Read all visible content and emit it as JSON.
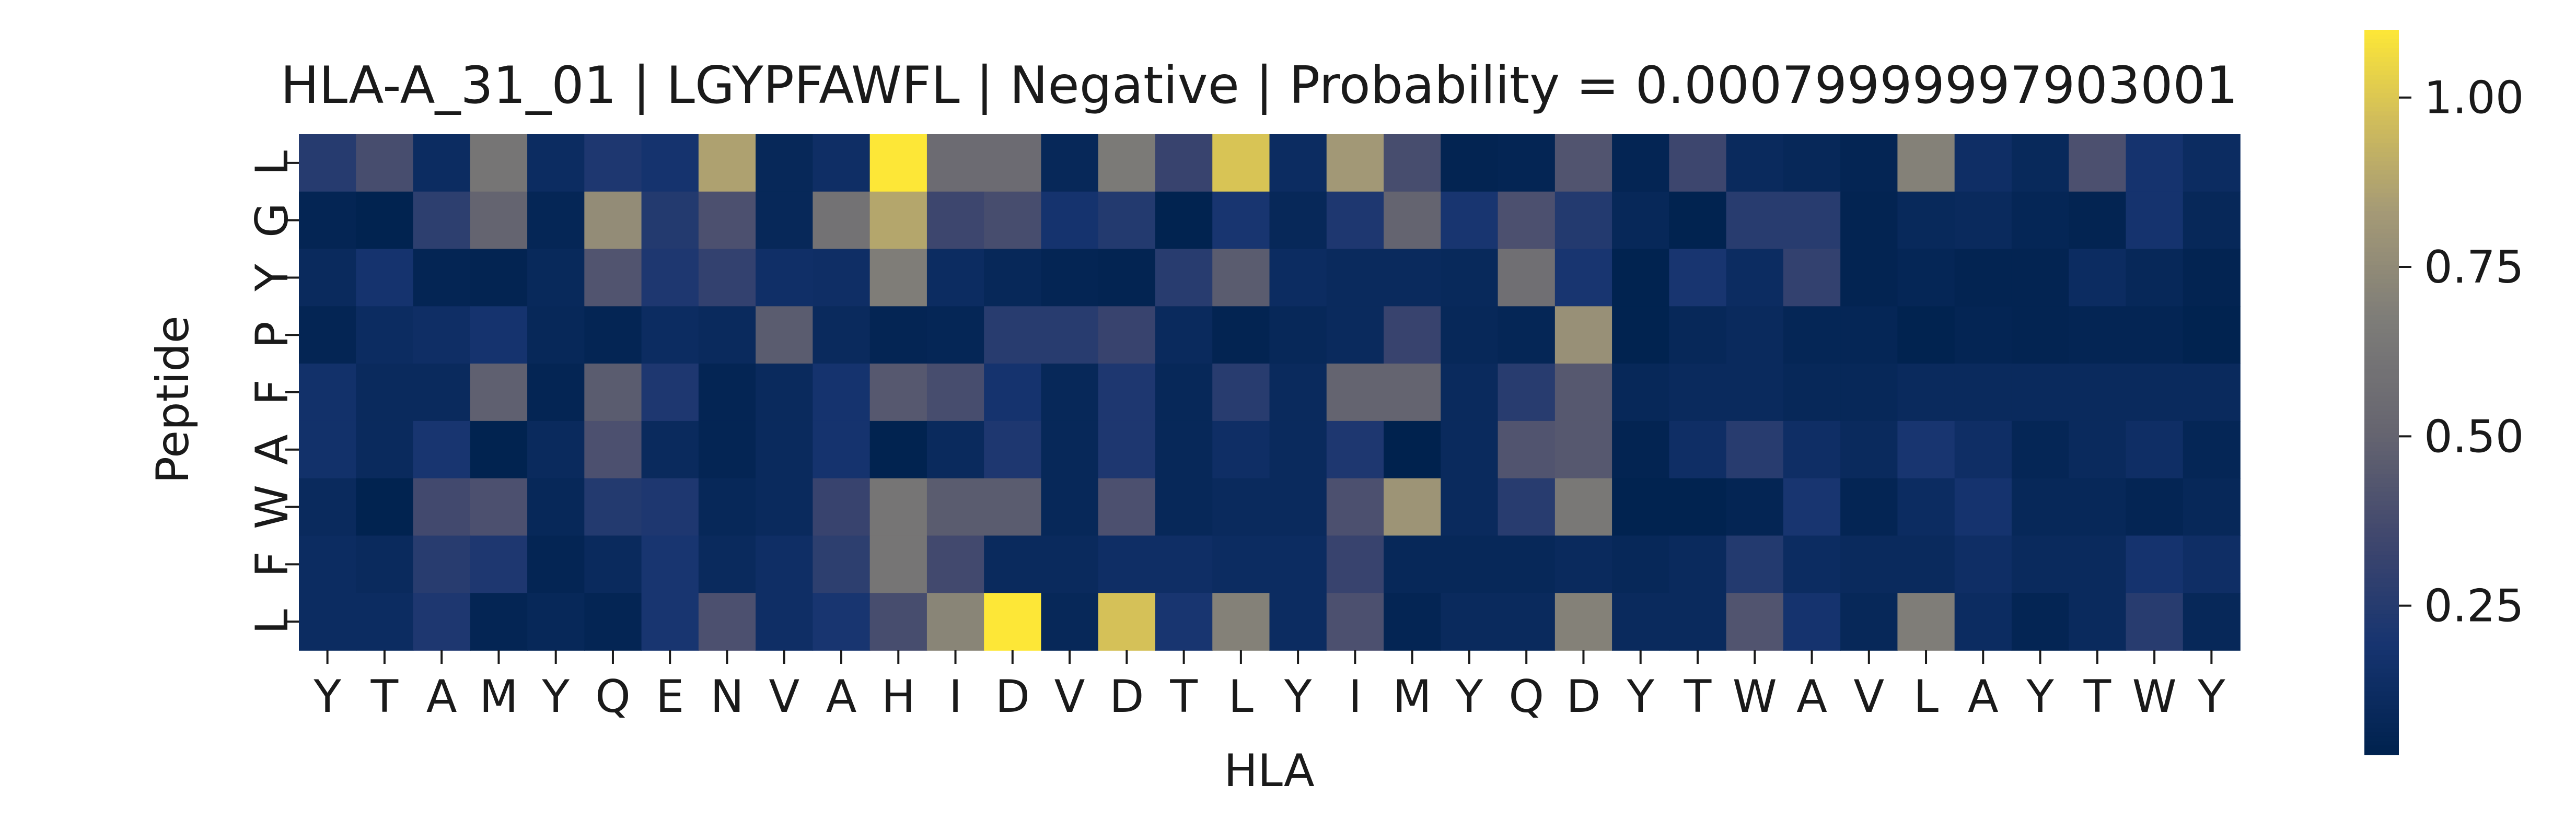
{
  "chart_data": {
    "type": "heatmap",
    "title": "HLA-A_31_01 | LGYPFAWFL | Negative | Probability = 0.00079999997903001",
    "xlabel": "HLA",
    "ylabel": "Peptide",
    "x_labels": [
      "Y",
      "T",
      "A",
      "M",
      "Y",
      "Q",
      "E",
      "N",
      "V",
      "A",
      "H",
      "I",
      "D",
      "V",
      "D",
      "T",
      "L",
      "Y",
      "I",
      "M",
      "Y",
      "Q",
      "D",
      "Y",
      "T",
      "W",
      "A",
      "V",
      "L",
      "A",
      "Y",
      "T",
      "W",
      "Y"
    ],
    "y_labels": [
      "L",
      "G",
      "Y",
      "P",
      "F",
      "A",
      "W",
      "F",
      "L"
    ],
    "colormap": "cividis",
    "color_range": [
      0.03,
      1.1
    ],
    "colorbar_ticks": [
      {
        "value": 0.25,
        "label": "0.25"
      },
      {
        "value": 0.5,
        "label": "0.50"
      },
      {
        "value": 0.75,
        "label": "0.75"
      },
      {
        "value": 1.0,
        "label": "1.00"
      }
    ],
    "grid": false,
    "values": [
      [
        0.25,
        0.38,
        0.12,
        0.62,
        0.12,
        0.22,
        0.18,
        0.86,
        0.08,
        0.14,
        1.1,
        0.55,
        0.55,
        0.08,
        0.66,
        0.32,
        0.99,
        0.12,
        0.82,
        0.38,
        0.05,
        0.06,
        0.42,
        0.06,
        0.34,
        0.1,
        0.08,
        0.06,
        0.7,
        0.14,
        0.09,
        0.4,
        0.18,
        0.12
      ],
      [
        0.06,
        0.04,
        0.28,
        0.5,
        0.07,
        0.76,
        0.24,
        0.4,
        0.08,
        0.6,
        0.88,
        0.34,
        0.38,
        0.18,
        0.24,
        0.04,
        0.2,
        0.08,
        0.22,
        0.5,
        0.2,
        0.4,
        0.24,
        0.08,
        0.04,
        0.26,
        0.26,
        0.05,
        0.09,
        0.1,
        0.07,
        0.05,
        0.18,
        0.08
      ],
      [
        0.1,
        0.18,
        0.06,
        0.05,
        0.09,
        0.42,
        0.22,
        0.3,
        0.15,
        0.14,
        0.68,
        0.12,
        0.08,
        0.06,
        0.05,
        0.26,
        0.46,
        0.12,
        0.1,
        0.1,
        0.09,
        0.58,
        0.2,
        0.04,
        0.2,
        0.12,
        0.3,
        0.05,
        0.07,
        0.05,
        0.05,
        0.12,
        0.08,
        0.05
      ],
      [
        0.06,
        0.12,
        0.14,
        0.18,
        0.08,
        0.06,
        0.12,
        0.1,
        0.46,
        0.1,
        0.06,
        0.07,
        0.26,
        0.26,
        0.32,
        0.1,
        0.05,
        0.08,
        0.1,
        0.32,
        0.08,
        0.07,
        0.78,
        0.04,
        0.08,
        0.1,
        0.07,
        0.07,
        0.04,
        0.06,
        0.05,
        0.06,
        0.06,
        0.04
      ],
      [
        0.16,
        0.1,
        0.1,
        0.48,
        0.06,
        0.46,
        0.22,
        0.06,
        0.1,
        0.18,
        0.44,
        0.38,
        0.18,
        0.08,
        0.22,
        0.08,
        0.26,
        0.1,
        0.5,
        0.5,
        0.1,
        0.26,
        0.44,
        0.08,
        0.1,
        0.1,
        0.08,
        0.08,
        0.1,
        0.1,
        0.1,
        0.1,
        0.1,
        0.1
      ],
      [
        0.16,
        0.1,
        0.2,
        0.04,
        0.1,
        0.4,
        0.1,
        0.06,
        0.1,
        0.18,
        0.04,
        0.1,
        0.22,
        0.08,
        0.22,
        0.08,
        0.14,
        0.1,
        0.22,
        0.02,
        0.1,
        0.42,
        0.44,
        0.05,
        0.14,
        0.26,
        0.14,
        0.1,
        0.2,
        0.14,
        0.07,
        0.1,
        0.14,
        0.07
      ],
      [
        0.1,
        0.04,
        0.36,
        0.4,
        0.08,
        0.24,
        0.22,
        0.08,
        0.1,
        0.32,
        0.62,
        0.46,
        0.46,
        0.08,
        0.4,
        0.08,
        0.1,
        0.1,
        0.4,
        0.8,
        0.1,
        0.26,
        0.64,
        0.04,
        0.04,
        0.06,
        0.2,
        0.06,
        0.12,
        0.18,
        0.08,
        0.08,
        0.06,
        0.08
      ],
      [
        0.12,
        0.1,
        0.26,
        0.22,
        0.06,
        0.1,
        0.2,
        0.1,
        0.14,
        0.28,
        0.62,
        0.36,
        0.1,
        0.1,
        0.14,
        0.14,
        0.12,
        0.12,
        0.32,
        0.08,
        0.08,
        0.08,
        0.1,
        0.08,
        0.1,
        0.24,
        0.12,
        0.1,
        0.1,
        0.14,
        0.1,
        0.1,
        0.18,
        0.14
      ],
      [
        0.12,
        0.12,
        0.22,
        0.06,
        0.08,
        0.06,
        0.2,
        0.4,
        0.14,
        0.2,
        0.38,
        0.72,
        1.1,
        0.08,
        0.98,
        0.2,
        0.7,
        0.12,
        0.4,
        0.06,
        0.1,
        0.1,
        0.7,
        0.1,
        0.1,
        0.42,
        0.18,
        0.08,
        0.68,
        0.12,
        0.06,
        0.1,
        0.26,
        0.08
      ]
    ]
  }
}
